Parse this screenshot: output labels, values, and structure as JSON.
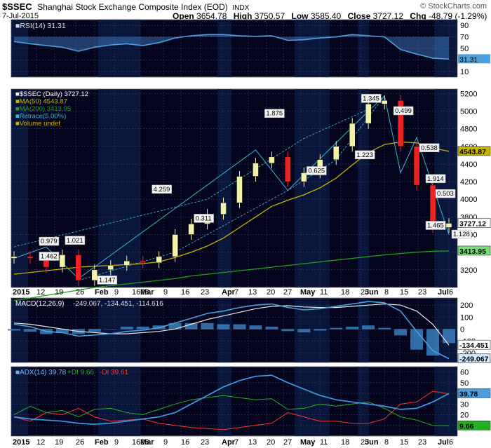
{
  "header": {
    "symbol": "$SSEC",
    "title": "Shanghai Stock Exchange Composite Index (EOD)",
    "exchange": "INDX",
    "brand": "© StockCharts.com",
    "date": "7-Jul-2015",
    "open_label": "Open",
    "open": "3654.78",
    "high_label": "High",
    "high": "3750.57",
    "low_label": "Low",
    "low": "3585.40",
    "close_label": "Close",
    "close": "3727.12",
    "chg_label": "Chg",
    "chg": "-48.79 (-1.29%)"
  },
  "colors": {
    "panel_bg": "#04041c",
    "up": "#f2f2a8",
    "down": "#ee2222",
    "ma50": "#c8b400",
    "ma200": "#22a022",
    "retrace": "#38b7d6",
    "macd": "#4a9fdc",
    "signal": "#e8e8e8",
    "hist": "#3a7fc0",
    "adx": "#3b9be8",
    "plus_di": "#22b022",
    "minus_di": "#ff3333",
    "rsi": "#4a9fdc"
  },
  "rsi_panel": {
    "legend": "RSI(14) 31.31",
    "current": "31.31",
    "ticks": [
      "90",
      "70",
      "50",
      "30",
      "10"
    ]
  },
  "price_panel": {
    "legend": [
      {
        "text": "$SSEC (Daily) 3727.12",
        "color": "#ffffff"
      },
      {
        "text": "MA(50) 4543.87",
        "color": "#c8b400"
      },
      {
        "text": "MA(200) 3413.95",
        "color": "#22a022"
      },
      {
        "text": "Retrace(5.00%)",
        "color": "#38b7d6"
      },
      {
        "text": "Volume undef",
        "color": "#c8b400"
      }
    ],
    "ticks": [
      "5200",
      "5000",
      "4800",
      "4600",
      "4400",
      "4200",
      "4000",
      "3800",
      "3600",
      "3400",
      "3200"
    ],
    "flags": [
      {
        "text": "4543.87",
        "value": 4543.87,
        "kind": "ma50"
      },
      {
        "text": "3727.12",
        "value": 3727.12,
        "kind": "price"
      },
      {
        "text": "3413.95",
        "value": 3413.95,
        "kind": "ma200"
      }
    ],
    "retrace_labels": [
      "0.979",
      "1.021",
      "1.462",
      "1.147",
      "4.259",
      "0.311",
      "1.875",
      "0.625",
      "1.345",
      "1.223",
      "0.499",
      "0.538",
      "1.914",
      "0.503",
      "1.465",
      "1.128"
    ]
  },
  "x_axis": {
    "labels": [
      "2015",
      "12",
      "19",
      "26",
      "Feb",
      "9",
      "1625",
      "Mar",
      "9",
      "16",
      "23",
      "Apr",
      "7",
      "13",
      "20",
      "27",
      "May",
      "11",
      "18",
      "25",
      "Jun",
      "8",
      "15",
      "23",
      "Jul",
      "6"
    ]
  },
  "macd_panel": {
    "legend_name": "MACD(12,26,9)",
    "legend_values": "-249.067, -134.451, -114.616",
    "ticks": [
      "200",
      "100",
      "0",
      "-100",
      "-200"
    ],
    "flags": [
      "-134.451",
      "-249.067"
    ]
  },
  "adx_panel": {
    "legend_name": "ADX(14) 39.78",
    "legend_pdi": "+DI 9.66",
    "legend_mdi": "-DI 39.61",
    "ticks": [
      "60",
      "50",
      "40",
      "30",
      "20",
      "10"
    ],
    "flags": [
      "39.78",
      "9.66"
    ]
  },
  "chart_data": {
    "type": "line",
    "title": "Shanghai Stock Exchange Composite Index (EOD)",
    "subtitle": "$SSEC (Daily)",
    "date_range": [
      "2015-01-05",
      "2015-07-07"
    ],
    "price": {
      "ylim": [
        3000,
        5250
      ],
      "x": [
        "2015-01-05",
        "2015-01-12",
        "2015-01-19",
        "2015-01-26",
        "2015-02-02",
        "2015-02-09",
        "2015-02-16",
        "2015-02-25",
        "2015-03-02",
        "2015-03-09",
        "2015-03-16",
        "2015-03-23",
        "2015-03-30",
        "2015-04-07",
        "2015-04-13",
        "2015-04-20",
        "2015-04-27",
        "2015-05-04",
        "2015-05-11",
        "2015-05-18",
        "2015-05-25",
        "2015-06-01",
        "2015-06-08",
        "2015-06-15",
        "2015-06-23",
        "2015-06-29",
        "2015-07-03",
        "2015-07-07"
      ],
      "close": [
        3350,
        3330,
        3230,
        3370,
        3080,
        3200,
        3250,
        3300,
        3280,
        3350,
        3600,
        3720,
        3830,
        3960,
        4260,
        4410,
        4480,
        4200,
        4300,
        4450,
        4600,
        4860,
        5080,
        5120,
        4600,
        4160,
        3680,
        3727.12
      ],
      "ma50": [
        3150,
        3170,
        3190,
        3210,
        3230,
        3240,
        3250,
        3260,
        3270,
        3290,
        3340,
        3400,
        3470,
        3560,
        3680,
        3800,
        3920,
        3990,
        4050,
        4130,
        4240,
        4390,
        4530,
        4620,
        4650,
        4640,
        4580,
        4543.87
      ],
      "ma200": [
        2850,
        2880,
        2910,
        2940,
        2970,
        3000,
        3020,
        3040,
        3060,
        3080,
        3100,
        3130,
        3150,
        3170,
        3190,
        3210,
        3230,
        3250,
        3270,
        3290,
        3310,
        3330,
        3350,
        3370,
        3385,
        3400,
        3410,
        3413.95
      ]
    },
    "rsi": {
      "ylim": [
        0,
        100
      ],
      "values": [
        62,
        58,
        55,
        52,
        45,
        52,
        56,
        58,
        55,
        60,
        68,
        72,
        74,
        74,
        72,
        71,
        72,
        64,
        65,
        68,
        70,
        74,
        72,
        70,
        48,
        40,
        33,
        31.31
      ]
    },
    "macd": {
      "ylim": [
        -280,
        260
      ],
      "macd": [
        40,
        20,
        -20,
        -30,
        -60,
        -50,
        -40,
        -20,
        -10,
        10,
        50,
        90,
        130,
        150,
        180,
        200,
        210,
        180,
        160,
        170,
        190,
        210,
        230,
        220,
        150,
        -20,
        -180,
        -249.067
      ],
      "signal": [
        50,
        40,
        20,
        0,
        -20,
        -30,
        -40,
        -40,
        -30,
        -20,
        0,
        40,
        80,
        110,
        140,
        170,
        190,
        195,
        185,
        180,
        180,
        190,
        200,
        210,
        200,
        150,
        40,
        -134.451
      ],
      "hist": [
        -10,
        -20,
        -40,
        -30,
        -40,
        -20,
        0,
        20,
        20,
        30,
        50,
        50,
        50,
        40,
        40,
        30,
        20,
        -15,
        -25,
        -10,
        10,
        20,
        30,
        10,
        -50,
        -170,
        -220,
        -114.616
      ]
    },
    "adx": {
      "ylim": [
        0,
        65
      ],
      "adx": [
        18,
        16,
        15,
        14,
        12,
        11,
        12,
        14,
        16,
        18,
        22,
        30,
        38,
        46,
        52,
        56,
        57,
        50,
        44,
        38,
        34,
        32,
        30,
        28,
        25,
        26,
        32,
        39.78
      ],
      "plus_di": [
        20,
        28,
        22,
        24,
        18,
        25,
        26,
        22,
        20,
        25,
        30,
        34,
        36,
        38,
        36,
        34,
        35,
        25,
        26,
        30,
        28,
        30,
        32,
        26,
        18,
        15,
        10,
        9.66
      ],
      "minus_di": [
        18,
        14,
        22,
        20,
        26,
        18,
        14,
        15,
        16,
        12,
        10,
        8,
        7,
        6,
        8,
        10,
        12,
        22,
        18,
        14,
        14,
        12,
        12,
        16,
        30,
        32,
        42,
        39.61
      ]
    }
  }
}
